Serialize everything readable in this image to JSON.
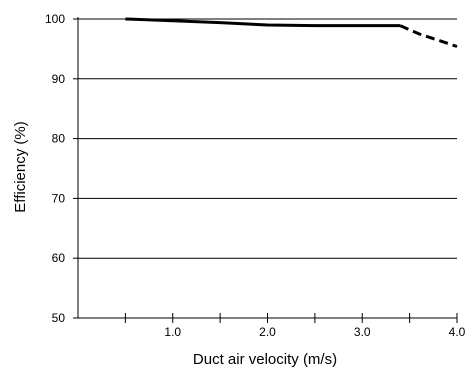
{
  "chart_data": {
    "type": "line",
    "title": "",
    "xlabel": "Duct air velocity (m/s)",
    "ylabel": "Efficiency (%)",
    "xlim": [
      0,
      4.0
    ],
    "ylim": [
      50,
      100
    ],
    "grid": "horizontal",
    "x_ticks": [
      0.5,
      1.0,
      1.5,
      2.0,
      2.5,
      3.0,
      3.5,
      4.0
    ],
    "x_tick_labels": [
      {
        "value": 1.0,
        "label": "1.0"
      },
      {
        "value": 2.0,
        "label": "2.0"
      },
      {
        "value": 3.0,
        "label": "3.0"
      },
      {
        "value": 4.0,
        "label": "4.0"
      }
    ],
    "y_ticks": [
      {
        "value": 50,
        "label": "50"
      },
      {
        "value": 60,
        "label": "60"
      },
      {
        "value": 70,
        "label": "70"
      },
      {
        "value": 80,
        "label": "80"
      },
      {
        "value": 90,
        "label": "90"
      },
      {
        "value": 100,
        "label": "100"
      }
    ],
    "series": [
      {
        "style": "solid",
        "color": "#000000",
        "x": [
          0.5,
          1.0,
          1.5,
          2.0,
          2.5,
          3.0,
          3.4
        ],
        "y": [
          100.0,
          99.7,
          99.4,
          99.0,
          98.9,
          98.9,
          98.9
        ]
      },
      {
        "style": "dashed",
        "color": "#000000",
        "x": [
          3.4,
          3.6,
          4.0
        ],
        "y": [
          98.9,
          97.5,
          95.4
        ]
      }
    ]
  }
}
